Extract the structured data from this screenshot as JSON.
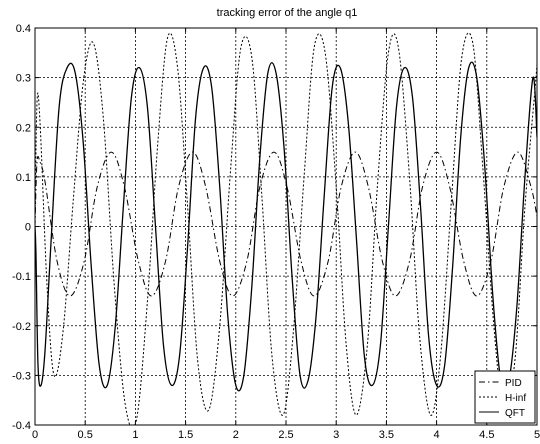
{
  "chart_data": {
    "type": "line",
    "title": "tracking error of the angle q1",
    "xlabel": "",
    "ylabel": "",
    "xlim": [
      0,
      5
    ],
    "ylim": [
      -0.4,
      0.4
    ],
    "xticks": [
      0,
      0.5,
      1,
      1.5,
      2,
      2.5,
      3,
      3.5,
      4,
      4.5,
      5
    ],
    "xtick_labels": [
      "0",
      "0.5",
      "1",
      "1.5",
      "2",
      "2.5",
      "3",
      "3.5",
      "4",
      "4.5",
      "5"
    ],
    "yticks": [
      -0.4,
      -0.3,
      -0.2,
      -0.1,
      0,
      0.1,
      0.2,
      0.3,
      0.4
    ],
    "ytick_labels": [
      "-0.4",
      "-0.3",
      "-0.2",
      "-0.1",
      "0",
      "0.1",
      "0.2",
      "0.3",
      "0.4"
    ],
    "grid": true,
    "legend_position": "bottom-right",
    "series": [
      {
        "name": "PID",
        "style": "dash-dot",
        "color": "#000000",
        "x": [
          0,
          0.02,
          0.05,
          0.1,
          0.22,
          0.35,
          0.49,
          0.62,
          0.76,
          0.89,
          1.03,
          1.16,
          1.3,
          1.43,
          1.57,
          1.7,
          1.84,
          1.97,
          2.11,
          2.24,
          2.38,
          2.51,
          2.65,
          2.78,
          2.92,
          3.05,
          3.19,
          3.32,
          3.46,
          3.59,
          3.73,
          3.86,
          4.0,
          4.13,
          4.27,
          4.4,
          4.54,
          4.67,
          4.81,
          4.94,
          5.0
        ],
        "y": [
          0,
          0.13,
          0.13,
          0.09,
          -0.07,
          -0.14,
          -0.07,
          0.08,
          0.15,
          0.08,
          -0.07,
          -0.14,
          -0.07,
          0.08,
          0.15,
          0.08,
          -0.07,
          -0.14,
          -0.07,
          0.08,
          0.15,
          0.08,
          -0.07,
          -0.14,
          -0.07,
          0.08,
          0.15,
          0.08,
          -0.07,
          -0.14,
          -0.07,
          0.08,
          0.15,
          0.08,
          -0.07,
          -0.14,
          -0.07,
          0.08,
          0.15,
          0.08,
          0.02
        ]
      },
      {
        "name": "H-inf",
        "style": "dotted",
        "color": "#000000",
        "x": [
          0,
          0.02,
          0.05,
          0.12,
          0.19,
          0.28,
          0.38,
          0.48,
          0.58,
          0.68,
          0.79,
          0.9,
          1.01,
          1.12,
          1.22,
          1.32,
          1.42,
          1.52,
          1.62,
          1.73,
          1.84,
          1.95,
          2.05,
          2.16,
          2.26,
          2.36,
          2.47,
          2.57,
          2.68,
          2.78,
          2.89,
          3.0,
          3.1,
          3.2,
          3.31,
          3.41,
          3.52,
          3.62,
          3.73,
          3.83,
          3.94,
          4.04,
          4.15,
          4.25,
          4.36,
          4.46,
          4.57,
          4.67,
          4.78,
          4.88,
          4.99,
          5.0
        ],
        "y": [
          0,
          0.25,
          0.21,
          -0.12,
          -0.3,
          -0.21,
          0.05,
          0.29,
          0.37,
          0.22,
          -0.12,
          -0.36,
          -0.39,
          -0.15,
          0.16,
          0.38,
          0.32,
          0.04,
          -0.27,
          -0.37,
          -0.2,
          0.12,
          0.36,
          0.34,
          0.06,
          -0.26,
          -0.38,
          -0.22,
          0.1,
          0.36,
          0.35,
          0.08,
          -0.24,
          -0.38,
          -0.24,
          0.08,
          0.35,
          0.36,
          0.1,
          -0.22,
          -0.38,
          -0.26,
          0.06,
          0.34,
          0.37,
          0.12,
          -0.2,
          -0.37,
          -0.27,
          0.04,
          0.3,
          0.34
        ]
      },
      {
        "name": "QFT",
        "style": "solid",
        "color": "#000000",
        "x": [
          0,
          0.01,
          0.03,
          0.06,
          0.1,
          0.16,
          0.24,
          0.32,
          0.4,
          0.48,
          0.56,
          0.64,
          0.72,
          0.8,
          0.88,
          0.96,
          1.04,
          1.12,
          1.2,
          1.28,
          1.36,
          1.44,
          1.52,
          1.6,
          1.68,
          1.76,
          1.84,
          1.92,
          2.0,
          2.08,
          2.16,
          2.24,
          2.32,
          2.4,
          2.48,
          2.56,
          2.64,
          2.72,
          2.8,
          2.88,
          2.96,
          3.04,
          3.12,
          3.2,
          3.28,
          3.36,
          3.44,
          3.52,
          3.6,
          3.68,
          3.76,
          3.84,
          3.92,
          4.0,
          4.08,
          4.16,
          4.24,
          4.32,
          4.4,
          4.48,
          4.56,
          4.64,
          4.72,
          4.8,
          4.88,
          4.96,
          5.0
        ],
        "y": [
          0,
          -0.06,
          -0.28,
          -0.32,
          -0.25,
          -0.03,
          0.24,
          0.32,
          0.31,
          0.17,
          -0.08,
          -0.28,
          -0.32,
          -0.2,
          0.04,
          0.26,
          0.32,
          0.24,
          0.0,
          -0.24,
          -0.32,
          -0.26,
          -0.04,
          0.22,
          0.32,
          0.28,
          0.08,
          -0.18,
          -0.32,
          -0.3,
          -0.12,
          0.14,
          0.31,
          0.31,
          0.16,
          -0.1,
          -0.3,
          -0.31,
          -0.18,
          0.06,
          0.28,
          0.32,
          0.21,
          -0.02,
          -0.26,
          -0.32,
          -0.24,
          0.0,
          0.24,
          0.32,
          0.26,
          0.04,
          -0.22,
          -0.32,
          -0.28,
          -0.08,
          0.18,
          0.32,
          0.3,
          0.12,
          -0.14,
          -0.31,
          -0.31,
          -0.16,
          0.1,
          0.3,
          0.18
        ]
      }
    ]
  }
}
